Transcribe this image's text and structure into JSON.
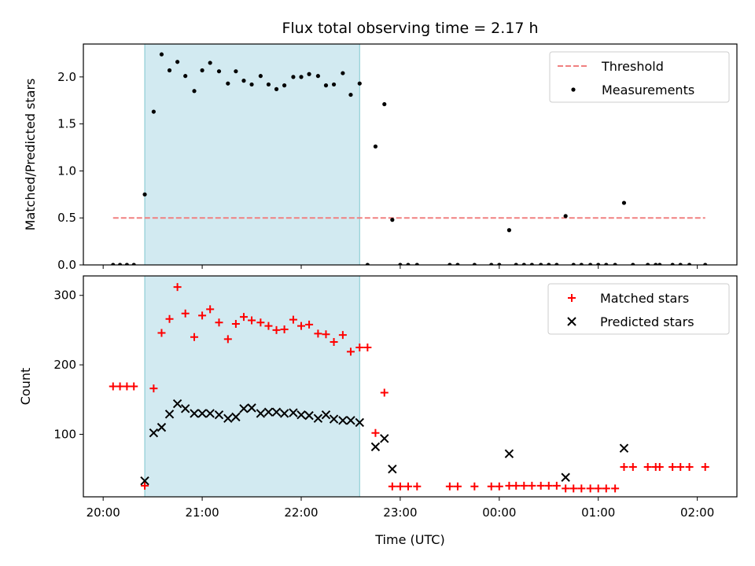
{
  "chart_data": [
    {
      "type": "scatter",
      "title": "Flux total observing time = 2.17 h",
      "ylabel": "Matched/Predicted stars",
      "xlim": [
        -0.2,
        6.4
      ],
      "ylim": [
        0,
        2.35
      ],
      "yticks": [
        0.0,
        0.5,
        1.0,
        1.5,
        2.0
      ],
      "ytick_labels": [
        "0.0",
        "0.5",
        "1.0",
        "1.5",
        "2.0"
      ],
      "shaded_region": {
        "x_start": 0.42,
        "x_end": 2.59,
        "color": "#add8e6"
      },
      "threshold": {
        "name": "Threshold",
        "y": 0.5,
        "x_start": 0.1,
        "x_end": 6.08,
        "color": "#f08080"
      },
      "legend": {
        "position": "upper right",
        "entries": [
          {
            "label": "Threshold",
            "style": "dashed-line",
            "color": "#f08080"
          },
          {
            "label": "Measurements",
            "style": "dot",
            "color": "#000000"
          }
        ]
      },
      "series": [
        {
          "name": "Measurements",
          "color": "#000000",
          "points": [
            [
              0.1,
              0
            ],
            [
              0.17,
              0
            ],
            [
              0.24,
              0
            ],
            [
              0.31,
              0
            ],
            [
              0.42,
              0.75
            ],
            [
              0.51,
              1.63
            ],
            [
              0.59,
              2.24
            ],
            [
              0.67,
              2.07
            ],
            [
              0.75,
              2.16
            ],
            [
              0.83,
              2.01
            ],
            [
              0.92,
              1.85
            ],
            [
              1.0,
              2.07
            ],
            [
              1.08,
              2.15
            ],
            [
              1.17,
              2.06
            ],
            [
              1.26,
              1.93
            ],
            [
              1.34,
              2.06
            ],
            [
              1.42,
              1.96
            ],
            [
              1.5,
              1.92
            ],
            [
              1.59,
              2.01
            ],
            [
              1.67,
              1.92
            ],
            [
              1.75,
              1.87
            ],
            [
              1.83,
              1.91
            ],
            [
              1.92,
              2.0
            ],
            [
              2.0,
              2.0
            ],
            [
              2.08,
              2.03
            ],
            [
              2.17,
              2.01
            ],
            [
              2.25,
              1.91
            ],
            [
              2.33,
              1.92
            ],
            [
              2.42,
              2.04
            ],
            [
              2.5,
              1.81
            ],
            [
              2.59,
              1.93
            ],
            [
              2.67,
              0
            ],
            [
              2.75,
              1.26
            ],
            [
              2.84,
              1.71
            ],
            [
              2.92,
              0.48
            ],
            [
              3.0,
              0
            ],
            [
              3.08,
              0
            ],
            [
              3.17,
              0
            ],
            [
              3.5,
              0
            ],
            [
              3.58,
              0
            ],
            [
              3.75,
              0
            ],
            [
              3.92,
              0
            ],
            [
              4.0,
              0
            ],
            [
              4.1,
              0.37
            ],
            [
              4.17,
              0
            ],
            [
              4.25,
              0
            ],
            [
              4.33,
              0
            ],
            [
              4.42,
              0
            ],
            [
              4.5,
              0
            ],
            [
              4.58,
              0
            ],
            [
              4.67,
              0.52
            ],
            [
              4.75,
              0
            ],
            [
              4.83,
              0
            ],
            [
              4.92,
              0
            ],
            [
              5.0,
              0
            ],
            [
              5.08,
              0
            ],
            [
              5.17,
              0
            ],
            [
              5.26,
              0.66
            ],
            [
              5.35,
              0
            ],
            [
              5.5,
              0
            ],
            [
              5.58,
              0
            ],
            [
              5.62,
              0
            ],
            [
              5.75,
              0
            ],
            [
              5.83,
              0
            ],
            [
              5.92,
              0
            ],
            [
              6.08,
              0
            ]
          ]
        }
      ]
    },
    {
      "type": "scatter",
      "xlabel": "Time (UTC)",
      "ylabel": "Count",
      "xlim": [
        -0.2,
        6.4
      ],
      "ylim": [
        10,
        328
      ],
      "yticks": [
        100,
        200,
        300
      ],
      "ytick_labels": [
        "100",
        "200",
        "300"
      ],
      "xticks": [
        0,
        1,
        2,
        3,
        4,
        5,
        6
      ],
      "xtick_labels": [
        "20:00",
        "21:00",
        "22:00",
        "23:00",
        "00:00",
        "01:00",
        "02:00"
      ],
      "shaded_region": {
        "x_start": 0.42,
        "x_end": 2.59,
        "color": "#add8e6"
      },
      "legend": {
        "position": "upper right",
        "entries": [
          {
            "label": "Matched stars",
            "style": "plus",
            "color": "#ff0000"
          },
          {
            "label": "Predicted stars",
            "style": "x",
            "color": "#000000"
          }
        ]
      },
      "series": [
        {
          "name": "Matched stars",
          "marker": "plus",
          "color": "#ff0000",
          "points": [
            [
              0.1,
              169
            ],
            [
              0.17,
              169
            ],
            [
              0.24,
              169
            ],
            [
              0.31,
              169
            ],
            [
              0.42,
              26
            ],
            [
              0.51,
              166
            ],
            [
              0.59,
              246
            ],
            [
              0.67,
              266
            ],
            [
              0.75,
              312
            ],
            [
              0.83,
              274
            ],
            [
              0.92,
              240
            ],
            [
              1.0,
              271
            ],
            [
              1.08,
              280
            ],
            [
              1.17,
              261
            ],
            [
              1.26,
              237
            ],
            [
              1.34,
              259
            ],
            [
              1.42,
              269
            ],
            [
              1.5,
              264
            ],
            [
              1.59,
              261
            ],
            [
              1.67,
              256
            ],
            [
              1.75,
              250
            ],
            [
              1.83,
              251
            ],
            [
              1.92,
              265
            ],
            [
              2.0,
              256
            ],
            [
              2.08,
              258
            ],
            [
              2.17,
              245
            ],
            [
              2.25,
              244
            ],
            [
              2.33,
              233
            ],
            [
              2.42,
              243
            ],
            [
              2.5,
              219
            ],
            [
              2.59,
              225
            ],
            [
              2.67,
              225
            ],
            [
              2.75,
              102
            ],
            [
              2.84,
              160
            ],
            [
              2.92,
              25
            ],
            [
              3.0,
              25
            ],
            [
              3.08,
              25
            ],
            [
              3.17,
              25
            ],
            [
              3.5,
              25
            ],
            [
              3.58,
              25
            ],
            [
              3.75,
              25
            ],
            [
              3.92,
              25
            ],
            [
              4.0,
              25
            ],
            [
              4.1,
              26
            ],
            [
              4.17,
              26
            ],
            [
              4.25,
              26
            ],
            [
              4.33,
              26
            ],
            [
              4.42,
              26
            ],
            [
              4.5,
              26
            ],
            [
              4.58,
              26
            ],
            [
              4.67,
              22
            ],
            [
              4.75,
              22
            ],
            [
              4.83,
              22
            ],
            [
              4.92,
              22
            ],
            [
              5.0,
              22
            ],
            [
              5.08,
              22
            ],
            [
              5.17,
              22
            ],
            [
              5.26,
              53
            ],
            [
              5.35,
              53
            ],
            [
              5.5,
              53
            ],
            [
              5.58,
              53
            ],
            [
              5.62,
              53
            ],
            [
              5.75,
              53
            ],
            [
              5.83,
              53
            ],
            [
              5.92,
              53
            ],
            [
              6.08,
              53
            ]
          ]
        },
        {
          "name": "Predicted stars",
          "marker": "x",
          "color": "#000000",
          "points": [
            [
              0.42,
              33
            ],
            [
              0.51,
              102
            ],
            [
              0.59,
              110
            ],
            [
              0.67,
              129
            ],
            [
              0.75,
              144
            ],
            [
              0.83,
              137
            ],
            [
              0.92,
              130
            ],
            [
              1.0,
              130
            ],
            [
              1.08,
              130
            ],
            [
              1.17,
              128
            ],
            [
              1.26,
              123
            ],
            [
              1.34,
              125
            ],
            [
              1.42,
              137
            ],
            [
              1.5,
              138
            ],
            [
              1.59,
              130
            ],
            [
              1.67,
              132
            ],
            [
              1.75,
              132
            ],
            [
              1.83,
              130
            ],
            [
              1.92,
              131
            ],
            [
              2.0,
              128
            ],
            [
              2.08,
              127
            ],
            [
              2.17,
              123
            ],
            [
              2.25,
              128
            ],
            [
              2.33,
              122
            ],
            [
              2.42,
              120
            ],
            [
              2.5,
              120
            ],
            [
              2.59,
              117
            ],
            [
              2.75,
              82
            ],
            [
              2.84,
              94
            ],
            [
              2.92,
              50
            ],
            [
              4.1,
              72
            ],
            [
              4.67,
              38
            ],
            [
              5.26,
              80
            ]
          ]
        }
      ]
    }
  ]
}
